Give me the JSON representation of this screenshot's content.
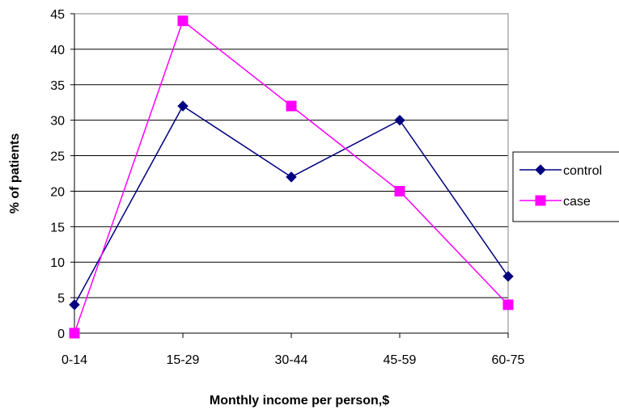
{
  "chart_data": {
    "type": "line",
    "categories": [
      "0-14",
      "15-29",
      "30-44",
      "45-59",
      "60-75"
    ],
    "series": [
      {
        "name": "control",
        "values": [
          4,
          32,
          22,
          30,
          8
        ],
        "color": "#000080",
        "marker": "diamond"
      },
      {
        "name": "case",
        "values": [
          0,
          44,
          32,
          20,
          4
        ],
        "color": "#ff00ff",
        "marker": "square"
      }
    ],
    "title": "",
    "xlabel": "Monthly income per person,$",
    "ylabel": "% of patients",
    "ylim": [
      0,
      45
    ],
    "yticks": [
      0,
      5,
      10,
      15,
      20,
      25,
      30,
      35,
      40,
      45
    ],
    "grid": true,
    "legend_position": "right"
  }
}
